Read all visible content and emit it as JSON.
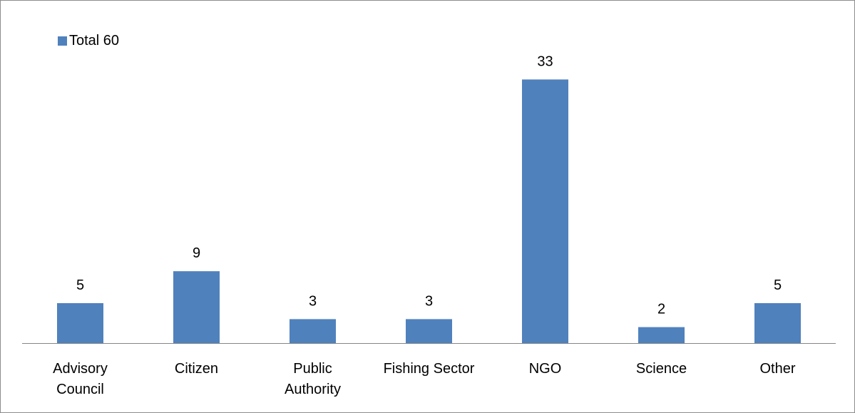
{
  "chart_data": {
    "type": "bar",
    "categories": [
      [
        "Advisory",
        "Council"
      ],
      [
        "Citizen"
      ],
      [
        "Public",
        "Authority"
      ],
      [
        "Fishing Sector"
      ],
      [
        "NGO"
      ],
      [
        "Science"
      ],
      [
        "Other"
      ]
    ],
    "series": [
      {
        "name": "Total 60",
        "values": [
          5,
          9,
          3,
          3,
          33,
          2,
          5
        ]
      }
    ],
    "ylim": [
      0,
      36
    ],
    "grid": false,
    "legend": "top-left",
    "colors": {
      "bar": "#4F81BD",
      "axis": "#868686",
      "frame": "#8c8c8c"
    }
  }
}
